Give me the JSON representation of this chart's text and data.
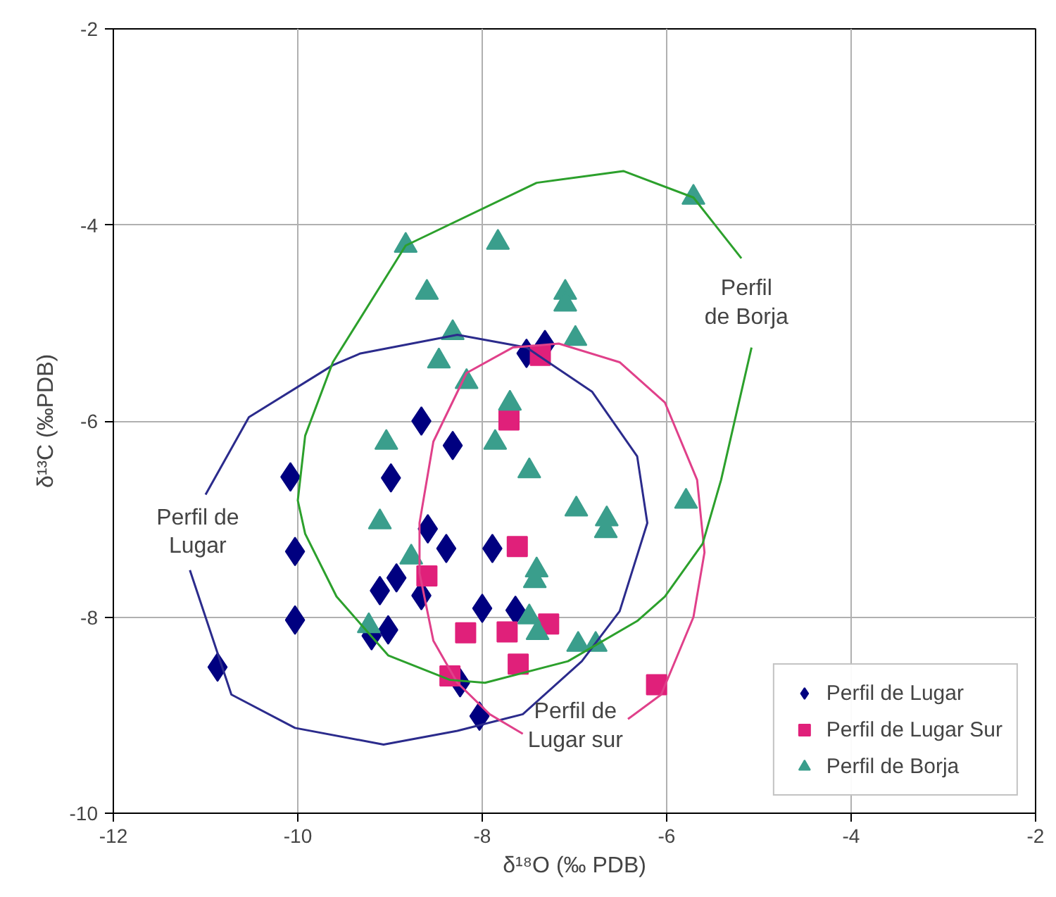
{
  "chart_data": {
    "type": "scatter",
    "xlabel": "δ¹⁸O (‰ PDB)",
    "ylabel": "δ¹³C (‰PDB)",
    "xlim": [
      -12,
      -2
    ],
    "ylim": [
      -10,
      -2
    ],
    "xticks": [
      -12,
      -10,
      -8,
      -6,
      -4,
      -2
    ],
    "yticks": [
      -10,
      -8,
      -6,
      -4,
      -2
    ],
    "grid": true,
    "legend": "bottom right",
    "series": [
      {
        "name": "Perfil de Lugar",
        "color": "#000080",
        "marker": "diamond",
        "x": [
          -10.87,
          -10.08,
          -10.03,
          -10.03,
          -9.2,
          -9.11,
          -9.02,
          -8.99,
          -8.93,
          -8.66,
          -8.66,
          -8.59,
          -8.39,
          -8.32,
          -8.24,
          -8.03,
          -8.0,
          -7.89,
          -7.64,
          -7.52,
          -7.32
        ],
        "values": [
          -8.51,
          -6.57,
          -7.33,
          -8.03,
          -8.19,
          -7.73,
          -8.13,
          -6.58,
          -7.6,
          -6.0,
          -7.78,
          -7.1,
          -7.3,
          -6.25,
          -8.67,
          -9.01,
          -7.91,
          -7.3,
          -7.93,
          -5.31,
          -5.22
        ]
      },
      {
        "name": "Perfil de Lugar Sur",
        "color": "#e0207a",
        "marker": "square",
        "x": [
          -8.6,
          -8.35,
          -8.18,
          -7.73,
          -7.71,
          -7.62,
          -7.61,
          -7.37,
          -7.28,
          -6.11
        ],
        "values": [
          -7.58,
          -8.6,
          -8.16,
          -8.15,
          -5.99,
          -7.28,
          -8.48,
          -5.33,
          -8.07,
          -8.69
        ]
      },
      {
        "name": "Perfil de Borja",
        "color": "#3a9e8c",
        "marker": "triangle",
        "x": [
          -9.23,
          -9.11,
          -9.04,
          -8.83,
          -8.77,
          -8.6,
          -8.47,
          -8.32,
          -8.17,
          -7.86,
          -7.83,
          -7.7,
          -7.49,
          -7.49,
          -7.43,
          -7.41,
          -7.4,
          -7.1,
          -7.1,
          -6.99,
          -6.98,
          -6.96,
          -6.77,
          -6.66,
          -6.65,
          -5.79,
          -5.71
        ],
        "values": [
          -8.09,
          -7.03,
          -6.22,
          -4.21,
          -7.39,
          -4.69,
          -5.39,
          -5.1,
          -5.6,
          -6.22,
          -4.18,
          -5.82,
          -6.51,
          -8.0,
          -7.63,
          -7.52,
          -8.16,
          -4.69,
          -4.81,
          -5.16,
          -6.9,
          -8.28,
          -8.28,
          -7.12,
          -7.0,
          -6.82,
          -3.72
        ]
      },
      {
        "type": "line",
        "name": "Perfil de\nLugar",
        "color": "#2b2b8c",
        "x": [
          -11.0,
          -10.53,
          -9.62,
          -9.32,
          -8.27,
          -7.52,
          -6.81,
          -6.32,
          -6.21,
          -6.51,
          -6.92,
          -7.56,
          -8.27,
          -9.07,
          -10.03,
          -10.72,
          -11.17
        ],
        "values": [
          -6.75,
          -5.96,
          -5.43,
          -5.31,
          -5.12,
          -5.25,
          -5.7,
          -6.36,
          -7.04,
          -7.94,
          -8.45,
          -8.99,
          -9.16,
          -9.3,
          -9.13,
          -8.79,
          -7.52
        ]
      },
      {
        "type": "line",
        "name": "Perfil de\nLugar sur",
        "color": "#e0408a",
        "x": [
          -6.42,
          -6.06,
          -5.71,
          -5.59,
          -5.67,
          -6.02,
          -6.51,
          -7.17,
          -7.67,
          -8.17,
          -8.53,
          -8.68,
          -8.68,
          -8.53,
          -8.27,
          -7.92,
          -7.56
        ],
        "values": [
          -9.04,
          -8.79,
          -8.0,
          -7.34,
          -6.6,
          -5.81,
          -5.4,
          -5.21,
          -5.25,
          -5.51,
          -6.21,
          -7.04,
          -7.55,
          -8.24,
          -8.67,
          -8.99,
          -9.19
        ]
      },
      {
        "type": "line",
        "name": "Perfil\nde Borja",
        "color": "#2ca02c",
        "x": [
          -5.19,
          -5.71,
          -6.47,
          -7.41,
          -8.83,
          -9.62,
          -9.92,
          -10.0,
          -9.92,
          -9.58,
          -9.02,
          -8.35,
          -7.97,
          -7.07,
          -6.32,
          -6.02,
          -5.61,
          -5.41,
          -5.08
        ],
        "values": [
          -4.34,
          -3.72,
          -3.45,
          -3.57,
          -4.21,
          -5.4,
          -6.15,
          -6.81,
          -7.15,
          -7.79,
          -8.39,
          -8.64,
          -8.67,
          -8.45,
          -8.04,
          -7.79,
          -7.25,
          -6.6,
          -5.25
        ]
      }
    ]
  }
}
